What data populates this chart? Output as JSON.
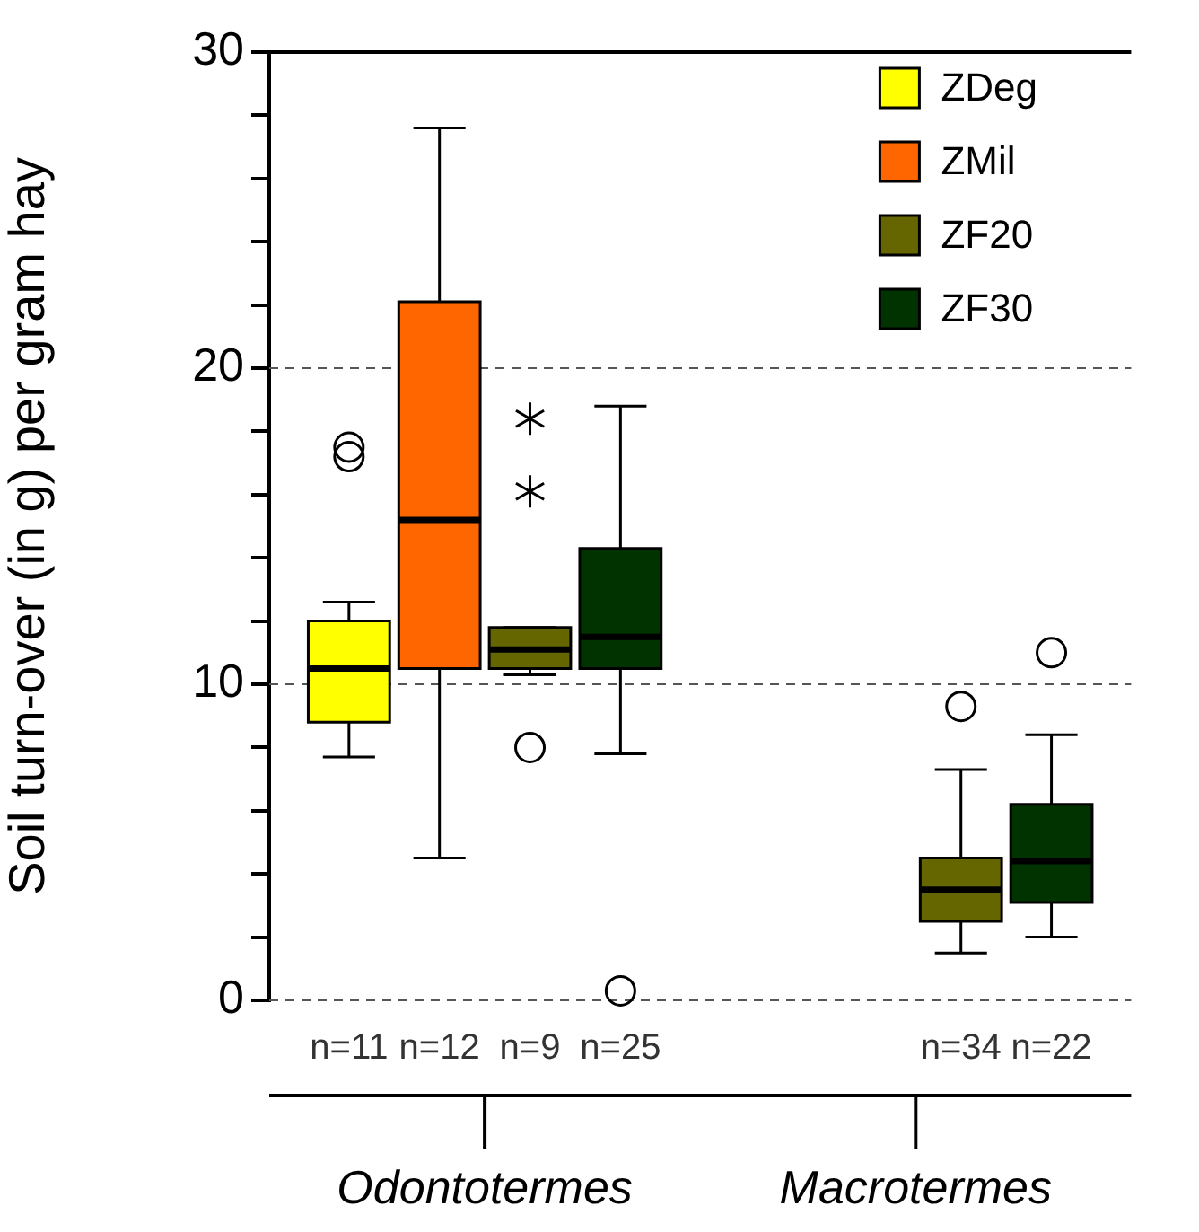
{
  "chart_data": {
    "type": "box",
    "ylabel": "Soil turn-over (in g) per gram hay",
    "categories": [
      "Odontotermes",
      "Macrotermes"
    ],
    "ylim": [
      0,
      30
    ],
    "yticks": [
      0,
      {
        "value": 2,
        "label": null
      },
      {
        "value": 4,
        "label": null
      },
      {
        "value": 6,
        "label": null
      },
      {
        "value": 8,
        "label": null
      },
      10,
      {
        "value": 12,
        "label": null
      },
      {
        "value": 14,
        "label": null
      },
      {
        "value": 16,
        "label": null
      },
      {
        "value": 18,
        "label": null
      },
      20,
      {
        "value": 22,
        "label": null
      },
      {
        "value": 24,
        "label": null
      },
      {
        "value": 26,
        "label": null
      },
      {
        "value": 28,
        "label": null
      },
      30
    ],
    "grid": "y",
    "legend": "top right",
    "series": [
      {
        "name": "ZDeg",
        "color": "#ffff00",
        "boxes": [
          {
            "low": 7.7,
            "q1": 8.8,
            "median": 10.5,
            "q3": 12.0,
            "high": 12.6,
            "outliers": [
              17.2,
              17.5
            ]
          },
          null
        ]
      },
      {
        "name": "ZMil",
        "color": "#ff6600",
        "boxes": [
          {
            "low": 4.5,
            "q1": 10.5,
            "median": 15.2,
            "q3": 22.1,
            "high": 27.6
          },
          null
        ]
      },
      {
        "name": "ZF20",
        "color": "#666600",
        "boxes": [
          {
            "low": 10.3,
            "q1": 10.5,
            "median": 11.1,
            "q3": 11.8,
            "high": 11.8,
            "outliers": [
              8.0,
              16.1,
              18.4
            ]
          },
          {
            "low": 1.5,
            "q1": 2.5,
            "median": 3.5,
            "q3": 4.5,
            "high": 7.3,
            "outliers": [
              9.3
            ]
          }
        ]
      },
      {
        "name": "ZF30",
        "color": "#003300",
        "boxes": [
          {
            "low": 7.8,
            "q1": 10.5,
            "median": 11.5,
            "q3": 14.3,
            "high": 18.8,
            "outliers": [
              0.3
            ]
          },
          {
            "low": 2.0,
            "q1": 3.1,
            "median": 4.4,
            "q3": 6.2,
            "high": 8.4,
            "outliers": [
              11.0
            ]
          }
        ]
      }
    ],
    "annotations": [
      "n=11",
      "n=12",
      "n=9",
      "n=25",
      "n=34",
      "n=22"
    ]
  }
}
